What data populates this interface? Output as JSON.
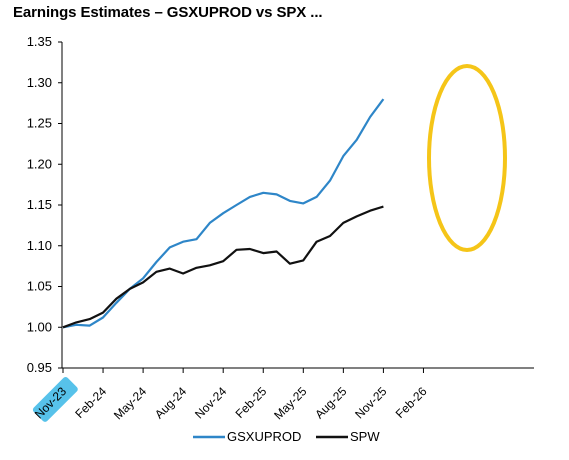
{
  "title": "Earnings Estimates – GSXUPROD vs SPX ...",
  "chart_data": {
    "type": "line",
    "title": "Earnings Estimates – GSXUPROD vs SPX ...",
    "xlabel": "",
    "ylabel": "",
    "ylim": [
      0.95,
      1.35
    ],
    "yticks": [
      "0.95",
      "1.00",
      "1.05",
      "1.10",
      "1.15",
      "1.20",
      "1.25",
      "1.30",
      "1.35"
    ],
    "xticks": [
      "Nov-23",
      "Feb-24",
      "May-24",
      "Aug-24",
      "Nov-24",
      "Feb-25",
      "May-25",
      "Aug-25",
      "Nov-25",
      "Feb-26"
    ],
    "grid": false,
    "legend_position": "bottom",
    "series": [
      {
        "name": "GSXUPROD",
        "color": "#2e86c8",
        "points": [
          [
            "Nov-23",
            1.0
          ],
          [
            "Dec-23",
            1.003
          ],
          [
            "Jan-24",
            1.002
          ],
          [
            "Feb-24",
            1.012
          ],
          [
            "Mar-24",
            1.03
          ],
          [
            "Apr-24",
            1.047
          ],
          [
            "May-24",
            1.06
          ],
          [
            "Jun-24",
            1.08
          ],
          [
            "Jul-24",
            1.098
          ],
          [
            "Aug-24",
            1.105
          ],
          [
            "Sep-24",
            1.108
          ],
          [
            "Oct-24",
            1.128
          ],
          [
            "Nov-24",
            1.14
          ],
          [
            "Dec-24",
            1.15
          ],
          [
            "Jan-25",
            1.16
          ],
          [
            "Feb-25",
            1.165
          ],
          [
            "Mar-25",
            1.163
          ],
          [
            "Apr-25",
            1.155
          ],
          [
            "May-25",
            1.152
          ],
          [
            "Jun-25",
            1.16
          ],
          [
            "Jul-25",
            1.18
          ],
          [
            "Aug-25",
            1.21
          ],
          [
            "Sep-25",
            1.23
          ],
          [
            "Oct-25",
            1.258
          ],
          [
            "Nov-25",
            1.28
          ]
        ]
      },
      {
        "name": "SPW",
        "color": "#111111",
        "points": [
          [
            "Nov-23",
            1.0
          ],
          [
            "Dec-23",
            1.006
          ],
          [
            "Jan-24",
            1.01
          ],
          [
            "Feb-24",
            1.018
          ],
          [
            "Mar-24",
            1.035
          ],
          [
            "Apr-24",
            1.047
          ],
          [
            "May-24",
            1.055
          ],
          [
            "Jun-24",
            1.068
          ],
          [
            "Jul-24",
            1.072
          ],
          [
            "Aug-24",
            1.066
          ],
          [
            "Sep-24",
            1.073
          ],
          [
            "Oct-24",
            1.076
          ],
          [
            "Nov-24",
            1.081
          ],
          [
            "Dec-24",
            1.095
          ],
          [
            "Jan-25",
            1.096
          ],
          [
            "Feb-25",
            1.091
          ],
          [
            "Mar-25",
            1.093
          ],
          [
            "Apr-25",
            1.078
          ],
          [
            "May-25",
            1.082
          ],
          [
            "Jun-25",
            1.105
          ],
          [
            "Jul-25",
            1.112
          ],
          [
            "Aug-25",
            1.128
          ],
          [
            "Sep-25",
            1.136
          ],
          [
            "Oct-25",
            1.143
          ],
          [
            "Nov-25",
            1.148
          ]
        ]
      }
    ],
    "annotations": [
      {
        "type": "ellipse-highlight",
        "color": "#f5c518",
        "around": "series end points near Nov-25"
      },
      {
        "type": "tick-highlight",
        "color": "#39b7e6",
        "tick": "Nov-23"
      }
    ]
  }
}
